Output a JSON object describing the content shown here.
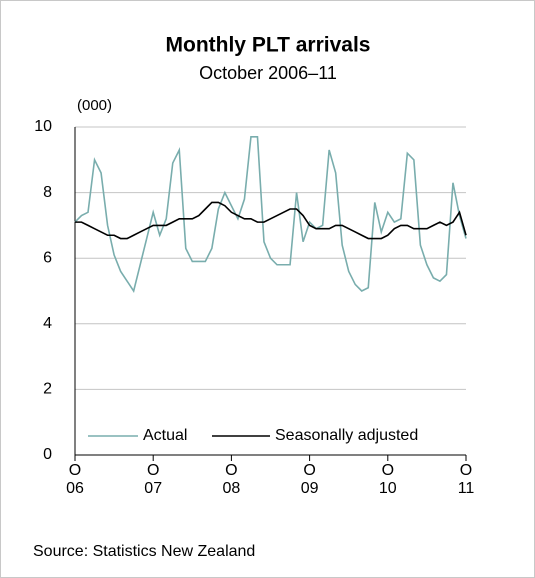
{
  "chart_data": {
    "type": "line",
    "title": "Monthly PLT arrivals",
    "subtitle": "October 2006–11",
    "y_unit_label": "(000)",
    "source": "Source: Statistics New Zealand",
    "x": [
      0,
      1,
      2,
      3,
      4,
      5,
      6,
      7,
      8,
      9,
      10,
      11,
      12,
      13,
      14,
      15,
      16,
      17,
      18,
      19,
      20,
      21,
      22,
      23,
      24,
      25,
      26,
      27,
      28,
      29,
      30,
      31,
      32,
      33,
      34,
      35,
      36,
      37,
      38,
      39,
      40,
      41,
      42,
      43,
      44,
      45,
      46,
      47,
      48,
      49,
      50,
      51,
      52,
      53,
      54,
      55,
      56,
      57,
      58,
      59,
      60
    ],
    "xlim": [
      0,
      60
    ],
    "xticks": [
      {
        "value": 0,
        "label": [
          "O",
          "06"
        ]
      },
      {
        "value": 12,
        "label": [
          "O",
          "07"
        ]
      },
      {
        "value": 24,
        "label": [
          "O",
          "08"
        ]
      },
      {
        "value": 36,
        "label": [
          "O",
          "09"
        ]
      },
      {
        "value": 48,
        "label": [
          "O",
          "10"
        ]
      },
      {
        "value": 60,
        "label": [
          "O",
          "11"
        ]
      }
    ],
    "ylim": [
      0,
      10
    ],
    "yticks": [
      0,
      2,
      4,
      6,
      8,
      10
    ],
    "grid": true,
    "legend": "lower center",
    "series": [
      {
        "name": "Actual",
        "color": "#79adad",
        "values": [
          7.1,
          7.3,
          7.4,
          9.0,
          8.6,
          7.0,
          6.1,
          5.6,
          5.3,
          5.0,
          5.8,
          6.6,
          7.4,
          6.7,
          7.2,
          8.9,
          9.3,
          6.3,
          5.9,
          5.9,
          5.9,
          6.3,
          7.5,
          8.0,
          7.6,
          7.2,
          7.8,
          9.7,
          9.7,
          6.5,
          6.0,
          5.8,
          5.8,
          5.8,
          8.0,
          6.5,
          7.1,
          6.9,
          7.0,
          9.3,
          8.6,
          6.4,
          5.6,
          5.2,
          5.0,
          5.1,
          7.7,
          6.8,
          7.4,
          7.1,
          7.2,
          9.2,
          9.0,
          6.4,
          5.8,
          5.4,
          5.3,
          5.5,
          8.3,
          7.3,
          6.6
        ]
      },
      {
        "name": "Seasonally adjusted",
        "color": "#000000",
        "values": [
          7.1,
          7.1,
          7.0,
          6.9,
          6.8,
          6.7,
          6.7,
          6.6,
          6.6,
          6.7,
          6.8,
          6.9,
          7.0,
          7.0,
          7.0,
          7.1,
          7.2,
          7.2,
          7.2,
          7.3,
          7.5,
          7.7,
          7.7,
          7.6,
          7.4,
          7.3,
          7.2,
          7.2,
          7.1,
          7.1,
          7.2,
          7.3,
          7.4,
          7.5,
          7.5,
          7.3,
          7.0,
          6.9,
          6.9,
          6.9,
          7.0,
          7.0,
          6.9,
          6.8,
          6.7,
          6.6,
          6.6,
          6.6,
          6.7,
          6.9,
          7.0,
          7.0,
          6.9,
          6.9,
          6.9,
          7.0,
          7.1,
          7.0,
          7.1,
          7.4,
          6.7
        ]
      }
    ]
  }
}
